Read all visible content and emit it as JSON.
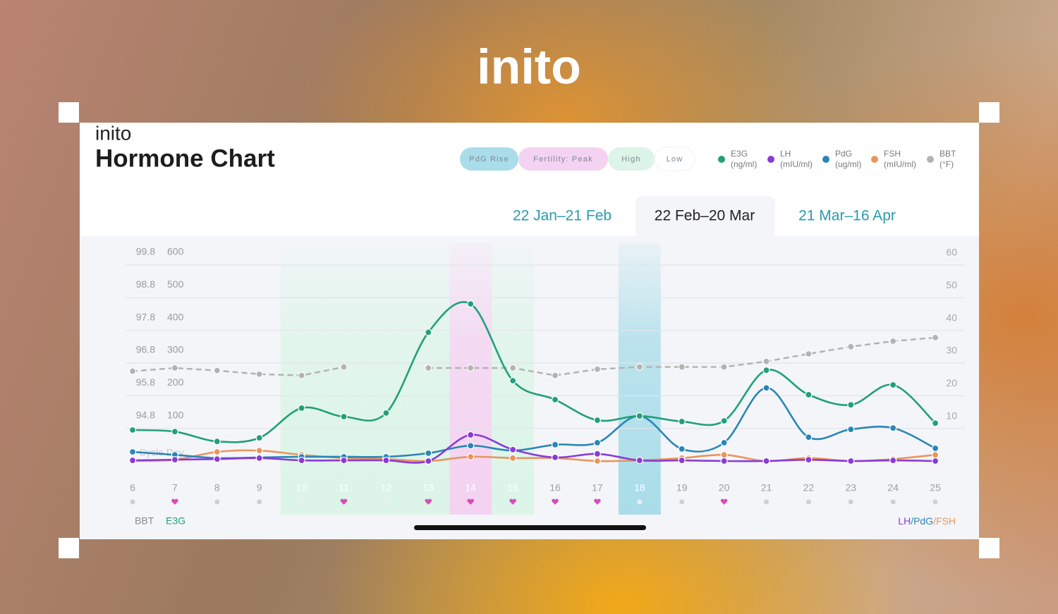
{
  "logo": "inito",
  "card": {
    "brand": "inito",
    "title": "Hormone Chart",
    "phase_legend": [
      {
        "label": "PdG Rise",
        "color": "#a9dde9"
      },
      {
        "label": "Fertility: Peak",
        "color": "#f4d2f1"
      },
      {
        "label": "High",
        "color": "#dcf5e8"
      },
      {
        "label": "Low",
        "color": "#ffffff"
      }
    ],
    "tabs": [
      "22 Jan–21 Feb",
      "22 Feb–20 Mar",
      "21 Mar–16 Apr"
    ],
    "active_tab": 1
  },
  "chart_data": {
    "type": "line",
    "x_label": "Cycle Day",
    "ylabel": "E3G",
    "y3label": "BBT",
    "y2label_parts": [
      "LH",
      "/PdG",
      "/FSH"
    ],
    "categories": [
      "6",
      "7",
      "8",
      "9",
      "10",
      "11",
      "12",
      "13",
      "14",
      "15",
      "16",
      "17",
      "18",
      "19",
      "20",
      "21",
      "22",
      "23",
      "24",
      "25"
    ],
    "phases": [
      "Low",
      "Low",
      "Low",
      "Low",
      "High",
      "High",
      "High",
      "High",
      "Fertility: Peak",
      "High",
      "Low",
      "Low",
      "PdG Rise",
      "Low",
      "Low",
      "Low",
      "Low",
      "Low",
      "Low",
      "Low"
    ],
    "day_markers": [
      "dot",
      "heart",
      "dot",
      "dot",
      "dot",
      "heart",
      "dot",
      "heart",
      "heart",
      "heart",
      "heart",
      "heart",
      "dot",
      "dot",
      "heart",
      "dot",
      "dot",
      "dot",
      "dot",
      "dot"
    ],
    "ylim": [
      0,
      600
    ],
    "yticks": [
      100,
      200,
      300,
      400,
      500,
      600
    ],
    "y2lim": [
      0,
      60
    ],
    "y2ticks": [
      10,
      20,
      30,
      40,
      50,
      60
    ],
    "y3lim": [
      93.8,
      99.8
    ],
    "y3ticks": [
      94.8,
      95.8,
      96.8,
      97.8,
      98.8,
      99.8
    ],
    "grid": true,
    "series": [
      {
        "name": "E3G",
        "unit": "(ng/ml)",
        "color": "#21a079",
        "axis": "y",
        "values": [
          95,
          90,
          60,
          71,
          162,
          136,
          147,
          394,
          481,
          246,
          188,
          125,
          138,
          121,
          123,
          278,
          203,
          172,
          233,
          116
        ]
      },
      {
        "name": "LH",
        "unit": "(mIU/ml)",
        "color": "#8a3bd6",
        "axis": "y2",
        "values": [
          0.2,
          0.4,
          0.6,
          0.9,
          0.2,
          0.2,
          0.2,
          0,
          8,
          3.5,
          1.1,
          2.2,
          0.2,
          0.2,
          0,
          0,
          0.4,
          0,
          0.2,
          0
        ]
      },
      {
        "name": "PdG",
        "unit": "(ug/ml)",
        "color": "#2a86b5",
        "axis": "y2",
        "values": [
          2.8,
          1.9,
          0.9,
          1.1,
          1.3,
          1.3,
          1.3,
          2.4,
          4.7,
          3.2,
          5,
          5.6,
          13.8,
          3.7,
          5.6,
          22.4,
          7.3,
          9.7,
          10.1,
          3.9
        ]
      },
      {
        "name": "FSH",
        "unit": "(mIU/ml)",
        "color": "#e8955e",
        "axis": "y2",
        "values": [
          0,
          0.4,
          2.8,
          3.2,
          1.9,
          0.9,
          0.6,
          0,
          1.3,
          0.9,
          0.9,
          0,
          0.2,
          0.9,
          1.9,
          0,
          0.9,
          0,
          0.6,
          1.9
        ]
      },
      {
        "name": "BBT",
        "unit": "(°F)",
        "color": "#b3b3b3",
        "axis": "y3",
        "dashed": true,
        "values": [
          96.55,
          96.65,
          96.57,
          96.46,
          96.42,
          96.68,
          null,
          96.65,
          96.65,
          96.65,
          96.42,
          96.61,
          96.68,
          96.68,
          96.68,
          96.85,
          97.08,
          97.3,
          97.47,
          97.58
        ]
      }
    ]
  }
}
